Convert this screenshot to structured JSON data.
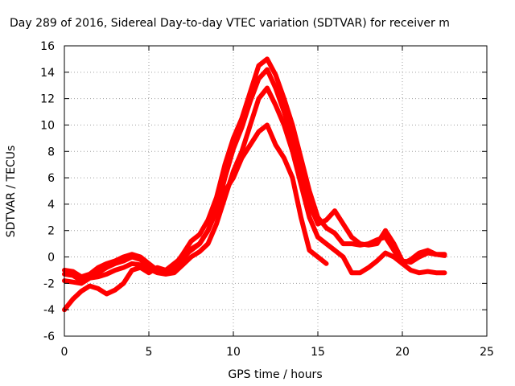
{
  "chart_data": {
    "type": "line",
    "title": "Day 289 of 2016, Sidereal Day-to-day VTEC variation (SDTVAR) for receiver m",
    "xlabel": "GPS time / hours",
    "ylabel": "SDTVAR / TECUs",
    "xlim": [
      0,
      25
    ],
    "ylim": [
      -6,
      16
    ],
    "xticks": [
      0,
      5,
      10,
      15,
      20,
      25
    ],
    "yticks": [
      -6,
      -4,
      -2,
      0,
      2,
      4,
      6,
      8,
      10,
      12,
      14,
      16
    ],
    "grid": true,
    "colors": {
      "series": "#ff0000",
      "grid": "#a0a0a0",
      "axis": "#000000"
    },
    "series": [
      {
        "name": "trace-a",
        "x": [
          0,
          0.5,
          1,
          1.5,
          2,
          2.5,
          3,
          3.5,
          4,
          4.5,
          5,
          5.5,
          6,
          6.5,
          7,
          7.5,
          8,
          8.5,
          9,
          9.5,
          10,
          10.5,
          11,
          11.5,
          12,
          12.5,
          13,
          13.5,
          14,
          14.5,
          15,
          15.5,
          16,
          16.5,
          17,
          17.5,
          18,
          18.5,
          19,
          19.5,
          20,
          20.5,
          21,
          21.5,
          22,
          22.5
        ],
        "values": [
          -1.0,
          -1.1,
          -1.5,
          -1.3,
          -0.8,
          -0.5,
          -0.3,
          0.0,
          0.2,
          0.0,
          -0.5,
          -1.0,
          -1.1,
          -0.7,
          0.2,
          1.2,
          1.7,
          2.8,
          4.5,
          7.0,
          9.0,
          10.5,
          12.5,
          14.5,
          15.0,
          13.8,
          12.0,
          10.0,
          7.5,
          5.0,
          3.0,
          2.2,
          1.8,
          1.0,
          1.0,
          0.9,
          1.0,
          1.3,
          1.5,
          0.5,
          -0.5,
          -1.0,
          -1.2,
          -1.1,
          -1.2,
          -1.2
        ]
      },
      {
        "name": "trace-b",
        "x": [
          0,
          0.5,
          1,
          1.5,
          2,
          2.5,
          3,
          3.5,
          4,
          4.5,
          5,
          5.5,
          6,
          6.5,
          7,
          7.5,
          8,
          8.5,
          9,
          9.5,
          10,
          10.5,
          11,
          11.5,
          12,
          12.5,
          13,
          13.5,
          14,
          14.5,
          15,
          15.5,
          16,
          16.5,
          17,
          17.5,
          18,
          18.5,
          19,
          19.5,
          20,
          20.5,
          21,
          21.5,
          22,
          22.5
        ],
        "values": [
          -1.3,
          -1.4,
          -1.8,
          -1.5,
          -1.2,
          -0.8,
          -0.5,
          -0.3,
          0.0,
          -0.2,
          -0.6,
          -1.1,
          -1.2,
          -0.9,
          -0.2,
          0.6,
          1.0,
          2.0,
          3.5,
          6.0,
          8.2,
          9.8,
          11.8,
          13.5,
          14.2,
          12.8,
          11.0,
          9.0,
          6.5,
          4.0,
          2.5,
          2.8,
          3.5,
          2.5,
          1.5,
          1.0,
          0.9,
          1.0,
          2.0,
          1.0,
          -0.3,
          -0.4,
          0.0,
          0.3,
          0.2,
          0.2
        ]
      },
      {
        "name": "trace-c",
        "x": [
          0,
          0.5,
          1,
          1.5,
          2,
          2.5,
          3,
          3.5,
          4,
          4.5,
          5,
          5.5,
          6,
          6.5,
          7,
          7.5,
          8,
          8.5,
          9,
          9.5,
          10,
          10.5,
          11,
          11.5,
          12,
          12.5,
          13,
          13.5,
          14,
          14.5,
          15,
          15.5,
          16,
          16.5,
          17,
          17.5,
          18,
          18.5,
          19,
          19.5,
          20,
          20.5,
          21,
          21.5,
          22,
          22.5
        ],
        "values": [
          -1.8,
          -1.9,
          -2.0,
          -1.6,
          -1.5,
          -1.3,
          -1.0,
          -0.8,
          -0.5,
          -0.6,
          -0.9,
          -1.2,
          -1.3,
          -1.2,
          -0.6,
          0.0,
          0.4,
          1.0,
          2.5,
          4.5,
          6.5,
          8.0,
          10.0,
          12.0,
          12.8,
          11.5,
          10.0,
          8.0,
          5.5,
          3.0,
          1.5,
          1.0,
          0.5,
          0.0,
          -1.2,
          -1.2,
          -0.8,
          -0.3,
          0.3,
          0.0,
          -0.5,
          -0.2,
          0.3,
          0.5,
          0.2,
          0.1
        ]
      },
      {
        "name": "trace-d",
        "x": [
          0,
          0.5,
          1,
          1.5,
          2,
          2.5,
          3,
          3.5,
          4,
          4.5,
          5,
          5.5,
          6,
          6.5,
          7,
          7.5,
          8,
          8.5,
          9,
          9.5,
          10,
          10.5,
          11,
          11.5,
          12,
          12.5,
          13,
          13.5,
          14,
          14.5,
          15,
          15.5
        ],
        "values": [
          -4.0,
          -3.2,
          -2.6,
          -2.2,
          -2.4,
          -2.8,
          -2.5,
          -2.0,
          -1.0,
          -0.8,
          -1.2,
          -0.8,
          -1.0,
          -0.5,
          0.0,
          0.5,
          1.0,
          2.0,
          3.5,
          5.0,
          6.0,
          7.5,
          8.5,
          9.5,
          10.0,
          8.5,
          7.5,
          6.0,
          3.0,
          0.5,
          0.0,
          -0.5
        ]
      }
    ]
  }
}
